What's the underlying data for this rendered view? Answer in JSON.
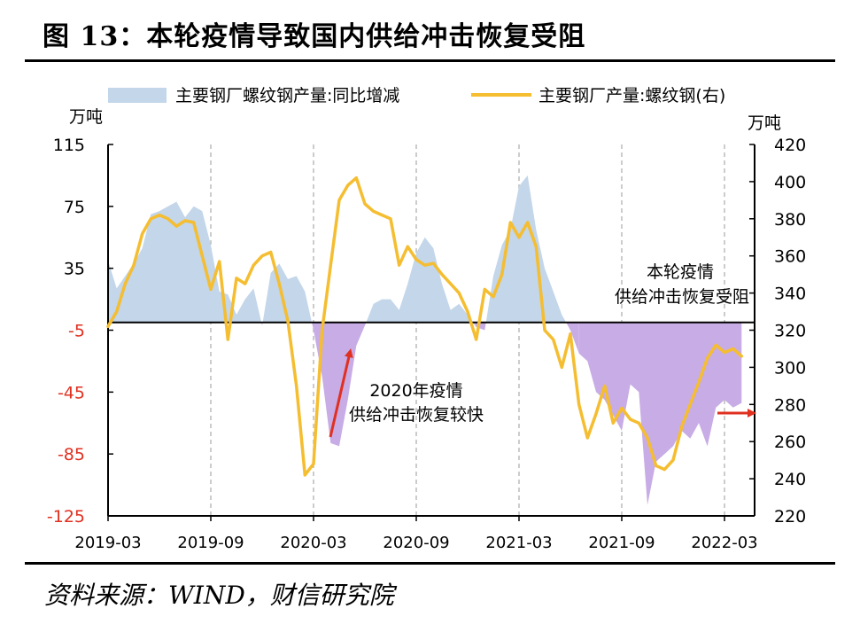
{
  "header": {
    "title": "图 13：本轮疫情导致国内供给冲击恢复受阻"
  },
  "footer": {
    "source": "资料来源：WIND，财信研究院"
  },
  "chart_data": {
    "type": "area+line",
    "legend": [
      {
        "label": "主要钢厂螺纹钢产量:同比增减",
        "kind": "area"
      },
      {
        "label": "主要钢厂产量:螺纹钢(右)",
        "kind": "line"
      }
    ],
    "left_unit": "万吨",
    "right_unit": "万吨",
    "left_axis": {
      "min": -125,
      "max": 115,
      "ticks": [
        115,
        75,
        35,
        -5,
        -45,
        -85,
        -125
      ],
      "negative_color": "#e03020"
    },
    "right_axis": {
      "min": 220,
      "max": 420,
      "ticks": [
        420,
        400,
        380,
        360,
        340,
        320,
        300,
        280,
        260,
        240,
        220
      ]
    },
    "x_ticks": [
      "2019-03",
      "2019-09",
      "2020-03",
      "2020-09",
      "2021-03",
      "2021-09",
      "2022-03"
    ],
    "annotations": [
      {
        "text_lines": [
          "2020年疫情",
          "供给冲击恢复较快"
        ]
      },
      {
        "text_lines": [
          "本轮疫情",
          "供给冲击恢复受阻"
        ]
      }
    ],
    "colors": {
      "area_pos": "#c3d6ea",
      "area_neg": "#c8ace6",
      "line": "#f5bd30",
      "arrow": "#e03020",
      "grid": "#bbbbbb"
    },
    "series_area": {
      "name": "主要钢厂螺纹钢产量:同比增减",
      "x": [
        0,
        0.5,
        1,
        1.5,
        2,
        2.5,
        3,
        3.5,
        4,
        4.5,
        5,
        5.5,
        6,
        6.5,
        7,
        7.5,
        8,
        8.5,
        9,
        9.5,
        10,
        10.5,
        11,
        11.5,
        12,
        12.5,
        13,
        13.5,
        14,
        14.5,
        15,
        15.5,
        16,
        16.5,
        17,
        17.5,
        18,
        18.5,
        19,
        19.5,
        20,
        20.5,
        21,
        21.5,
        22,
        22.5,
        23,
        23.5,
        24,
        24.5,
        25,
        25.5,
        26,
        26.5,
        27,
        27.5,
        28,
        28.5,
        29,
        29.5,
        30,
        30.5,
        31,
        31.5,
        32,
        32.5,
        33,
        33.5,
        34,
        34.5,
        35,
        35.5,
        36,
        36.5,
        37
      ],
      "values": [
        40,
        22,
        30,
        38,
        48,
        70,
        72,
        75,
        78,
        68,
        75,
        72,
        50,
        20,
        18,
        5,
        15,
        22,
        -2,
        32,
        38,
        28,
        30,
        20,
        -5,
        -35,
        -78,
        -80,
        -50,
        -15,
        -2,
        12,
        15,
        15,
        8,
        25,
        45,
        55,
        48,
        25,
        8,
        12,
        5,
        -3,
        -5,
        30,
        50,
        60,
        88,
        95,
        60,
        35,
        20,
        5,
        -5,
        -20,
        -25,
        -45,
        -50,
        -60,
        -70,
        -40,
        -45,
        -118,
        -90,
        -85,
        -80,
        -70,
        -75,
        -65,
        -80,
        -55,
        -50,
        -55,
        -52
      ],
      "negative_from_index": 55
    },
    "series_line": {
      "name": "主要钢厂产量:螺纹钢(右)",
      "x": [
        0,
        0.5,
        1,
        1.5,
        2,
        2.5,
        3,
        3.5,
        4,
        4.5,
        5,
        5.5,
        6,
        6.5,
        7,
        7.5,
        8,
        8.5,
        9,
        9.5,
        10,
        10.5,
        11,
        11.5,
        12,
        12.5,
        13,
        13.5,
        14,
        14.5,
        15,
        15.5,
        16,
        16.5,
        17,
        17.5,
        18,
        18.5,
        19,
        19.5,
        20,
        20.5,
        21,
        21.5,
        22,
        22.5,
        23,
        23.5,
        24,
        24.5,
        25,
        25.5,
        26,
        26.5,
        27,
        27.5,
        28,
        28.5,
        29,
        29.5,
        30,
        30.5,
        31,
        31.5,
        32,
        32.5,
        33,
        33.5,
        34,
        34.5,
        35,
        35.5,
        36,
        36.5,
        37
      ],
      "values": [
        322,
        330,
        345,
        355,
        372,
        380,
        382,
        380,
        376,
        379,
        378,
        360,
        342,
        357,
        315,
        348,
        345,
        355,
        360,
        362,
        345,
        325,
        290,
        242,
        248,
        320,
        355,
        390,
        398,
        402,
        388,
        384,
        382,
        380,
        355,
        365,
        358,
        355,
        356,
        350,
        345,
        340,
        330,
        315,
        342,
        338,
        350,
        378,
        370,
        378,
        365,
        320,
        315,
        300,
        318,
        280,
        262,
        275,
        290,
        270,
        278,
        272,
        270,
        262,
        247,
        245,
        250,
        268,
        280,
        292,
        305,
        312,
        308,
        310,
        306
      ]
    }
  }
}
